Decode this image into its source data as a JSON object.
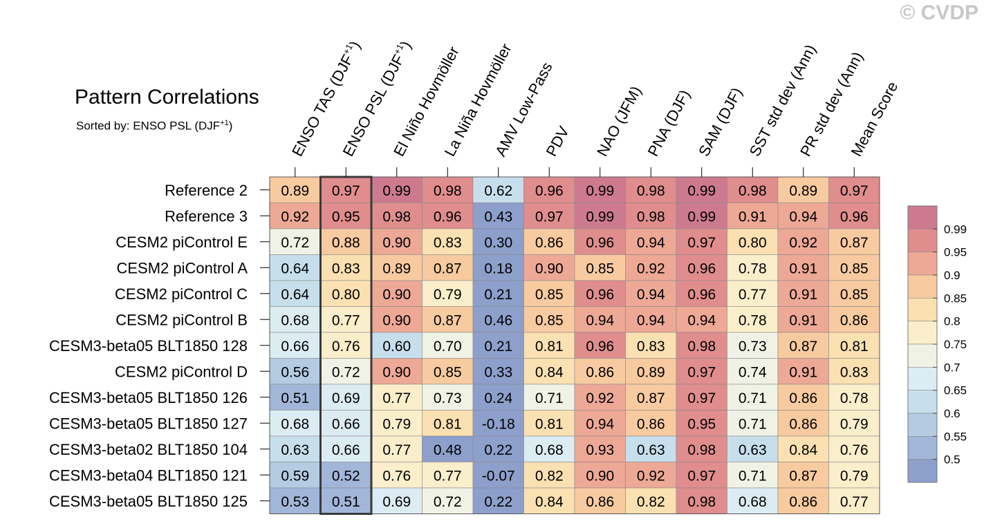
{
  "watermark": "© CVDP",
  "title": "Pattern Correlations",
  "subtitle": {
    "text": "Sorted by: ENSO PSL (DJF",
    "sup": "+1",
    "close": ")"
  },
  "chart_data": {
    "type": "heatmap",
    "title": "Pattern Correlations",
    "sorted_by": "ENSO PSL (DJF+1)",
    "highlighted_column": 1,
    "columns": [
      {
        "label": "ENSO TAS (DJF",
        "sup": "+1",
        "close": ")"
      },
      {
        "label": "ENSO PSL (DJF",
        "sup": "+1",
        "close": ")"
      },
      {
        "label": "El Niño Hovmöller"
      },
      {
        "label": "La Niña Hovmöller"
      },
      {
        "label": "AMV Low-Pass"
      },
      {
        "label": "PDV"
      },
      {
        "label": "NAO (JFM)"
      },
      {
        "label": "PNA (DJF)"
      },
      {
        "label": "SAM (DJF)"
      },
      {
        "label": "SST std dev (Ann)"
      },
      {
        "label": "PR std dev (Ann)"
      },
      {
        "label": "Mean Score"
      }
    ],
    "rows": [
      "Reference 2",
      "Reference 3",
      "CESM2 piControl E",
      "CESM2 piControl A",
      "CESM2 piControl C",
      "CESM2 piControl B",
      "CESM3-beta05 BLT1850 128",
      "CESM2 piControl D",
      "CESM3-beta05 BLT1850 126",
      "CESM3-beta05 BLT1850 127",
      "CESM3-beta02 BLT1850 104",
      "CESM3-beta04 BLT1850 121",
      "CESM3-beta05 BLT1850 125"
    ],
    "values": [
      [
        "0.89",
        "0.97",
        "0.99",
        "0.98",
        "0.62",
        "0.96",
        "0.99",
        "0.98",
        "0.99",
        "0.98",
        "0.89",
        "0.97"
      ],
      [
        "0.92",
        "0.95",
        "0.98",
        "0.96",
        "0.43",
        "0.97",
        "0.99",
        "0.98",
        "0.99",
        "0.91",
        "0.94",
        "0.96"
      ],
      [
        "0.72",
        "0.88",
        "0.90",
        "0.83",
        "0.30",
        "0.86",
        "0.96",
        "0.94",
        "0.97",
        "0.80",
        "0.92",
        "0.87"
      ],
      [
        "0.64",
        "0.83",
        "0.89",
        "0.87",
        "0.18",
        "0.90",
        "0.85",
        "0.92",
        "0.96",
        "0.78",
        "0.91",
        "0.85"
      ],
      [
        "0.64",
        "0.80",
        "0.90",
        "0.79",
        "0.21",
        "0.85",
        "0.96",
        "0.94",
        "0.96",
        "0.77",
        "0.91",
        "0.85"
      ],
      [
        "0.68",
        "0.77",
        "0.90",
        "0.87",
        "0.46",
        "0.85",
        "0.94",
        "0.94",
        "0.94",
        "0.78",
        "0.91",
        "0.86"
      ],
      [
        "0.66",
        "0.76",
        "0.60",
        "0.70",
        "0.21",
        "0.81",
        "0.96",
        "0.83",
        "0.98",
        "0.73",
        "0.87",
        "0.81"
      ],
      [
        "0.56",
        "0.72",
        "0.90",
        "0.85",
        "0.33",
        "0.84",
        "0.86",
        "0.89",
        "0.97",
        "0.74",
        "0.91",
        "0.83"
      ],
      [
        "0.51",
        "0.69",
        "0.77",
        "0.73",
        "0.24",
        "0.71",
        "0.92",
        "0.87",
        "0.97",
        "0.71",
        "0.86",
        "0.78"
      ],
      [
        "0.68",
        "0.66",
        "0.79",
        "0.81",
        "-0.18",
        "0.81",
        "0.94",
        "0.86",
        "0.95",
        "0.71",
        "0.86",
        "0.79"
      ],
      [
        "0.63",
        "0.66",
        "0.77",
        "0.48",
        "0.22",
        "0.68",
        "0.93",
        "0.63",
        "0.98",
        "0.63",
        "0.84",
        "0.76"
      ],
      [
        "0.59",
        "0.52",
        "0.76",
        "0.77",
        "-0.07",
        "0.82",
        "0.90",
        "0.92",
        "0.97",
        "0.71",
        "0.87",
        "0.79"
      ],
      [
        "0.53",
        "0.51",
        "0.69",
        "0.72",
        "0.22",
        "0.84",
        "0.86",
        "0.82",
        "0.98",
        "0.68",
        "0.86",
        "0.77"
      ]
    ],
    "colorbar": {
      "levels": [
        "0.5",
        "0.55",
        "0.6",
        "0.65",
        "0.7",
        "0.75",
        "0.8",
        "0.85",
        "0.9",
        "0.95",
        "0.99"
      ],
      "bins": [
        {
          "min": -1.0,
          "max": 0.5,
          "color": "#8d9fcb"
        },
        {
          "min": 0.5,
          "max": 0.55,
          "color": "#a2b6d9"
        },
        {
          "min": 0.55,
          "max": 0.6,
          "color": "#b4cbe2"
        },
        {
          "min": 0.6,
          "max": 0.65,
          "color": "#c7dfec"
        },
        {
          "min": 0.65,
          "max": 0.7,
          "color": "#dcecf3"
        },
        {
          "min": 0.7,
          "max": 0.75,
          "color": "#f1f2e6"
        },
        {
          "min": 0.75,
          "max": 0.8,
          "color": "#fbeecb"
        },
        {
          "min": 0.8,
          "max": 0.85,
          "color": "#fbe0b2"
        },
        {
          "min": 0.85,
          "max": 0.9,
          "color": "#f8caa0"
        },
        {
          "min": 0.9,
          "max": 0.95,
          "color": "#eda896"
        },
        {
          "min": 0.95,
          "max": 0.99,
          "color": "#e08d8e"
        },
        {
          "min": 0.99,
          "max": 1.01,
          "color": "#cd7a8f"
        }
      ]
    }
  }
}
